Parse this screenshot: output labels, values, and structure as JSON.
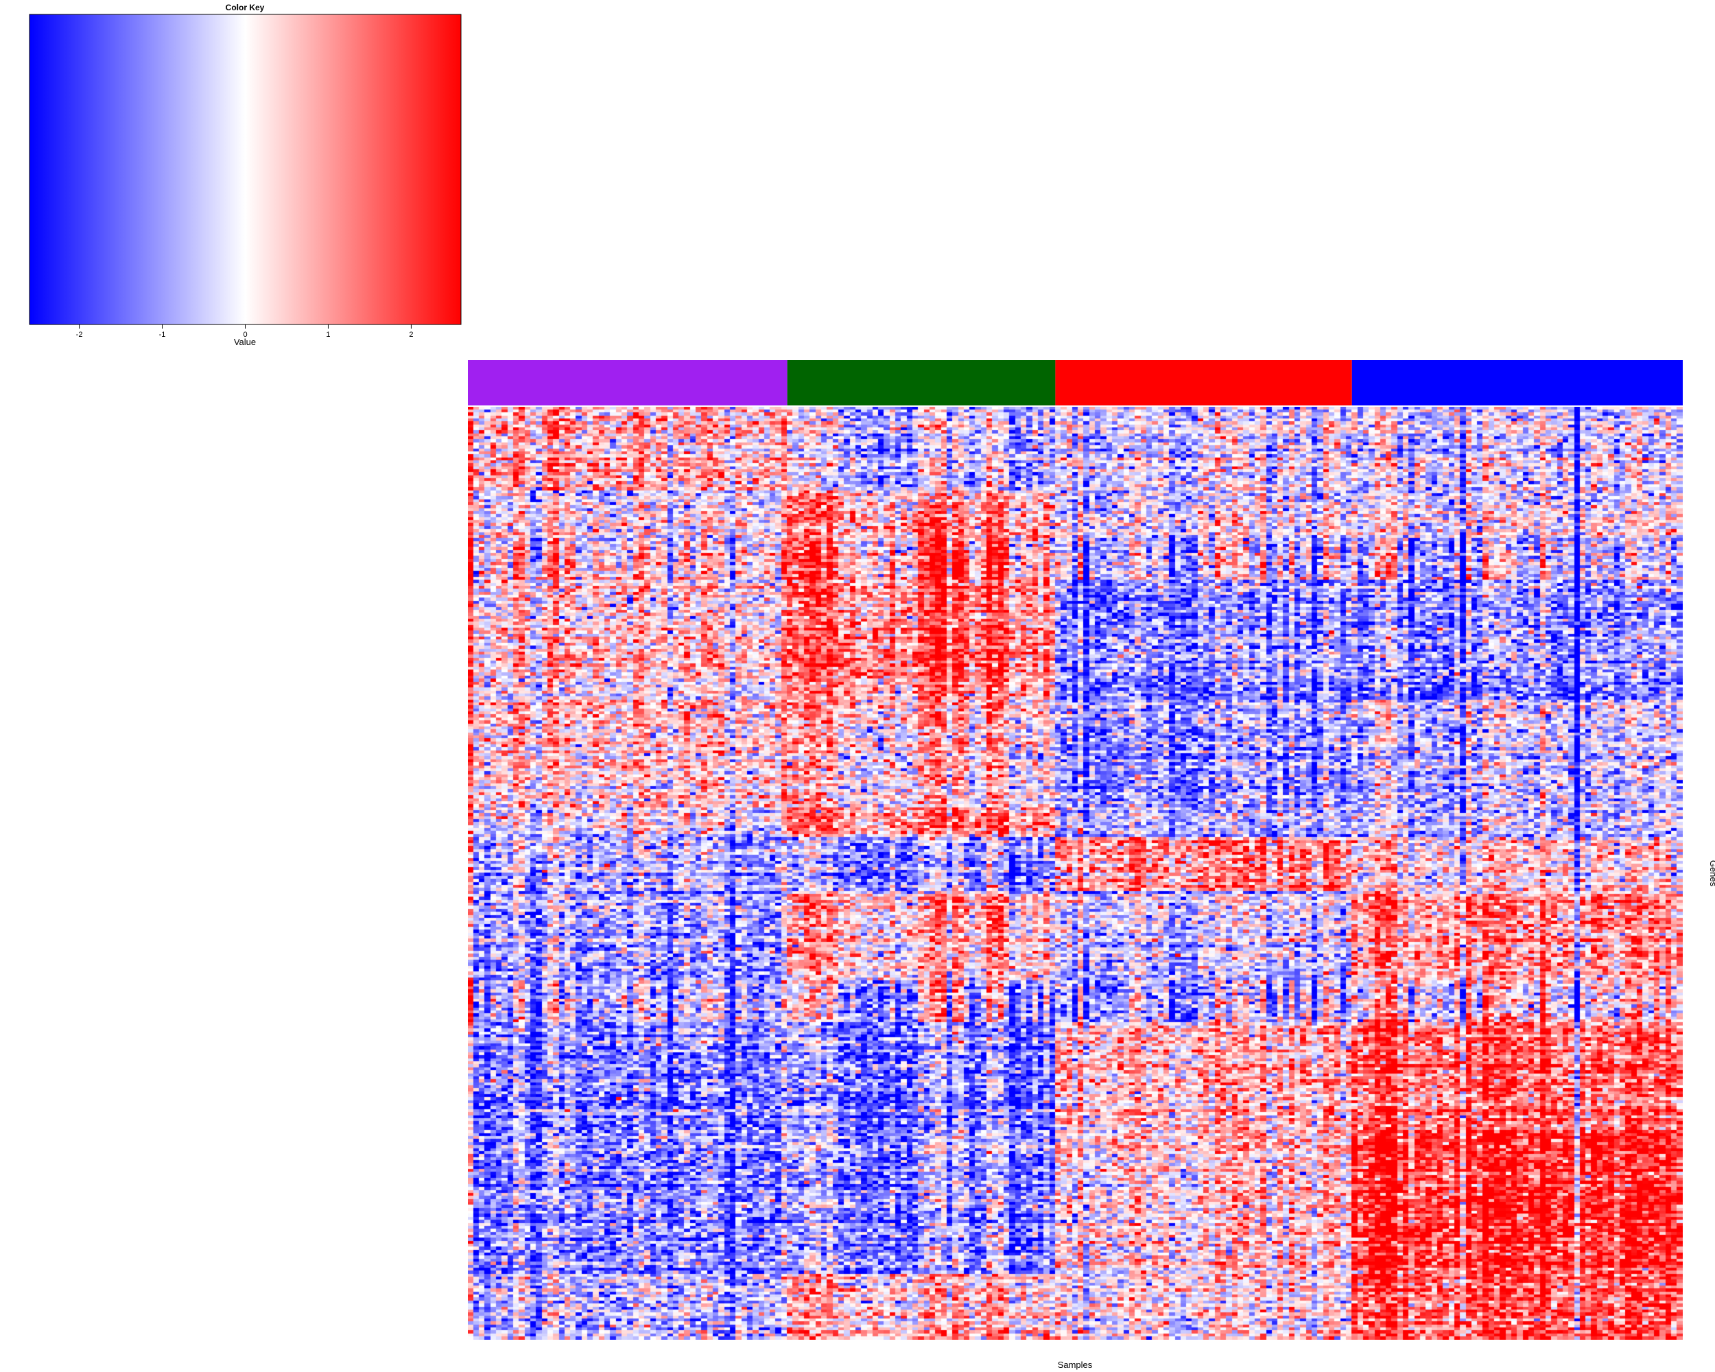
{
  "chart_data": {
    "type": "heatmap",
    "title": "",
    "xlabel": "Samples",
    "ylabel": "Genes",
    "color_key": {
      "title": "Color Key",
      "xlabel": "Value",
      "range": [
        -2.6,
        2.6
      ],
      "ticks": [
        -2,
        -1,
        0,
        1,
        2
      ],
      "tick_labels": [
        "-2",
        "-1",
        "0",
        "1",
        "2"
      ],
      "colors": [
        "#0000ff",
        "#ffffff",
        "#ff0000"
      ]
    },
    "sample_groups": [
      {
        "color": "#a020f0",
        "count": 56
      },
      {
        "color": "#006400",
        "count": 47
      },
      {
        "color": "#ff0000",
        "count": 52
      },
      {
        "color": "#0000ff",
        "count": 58
      }
    ],
    "gene_blocks": [
      {
        "rows": 28,
        "means": [
          0.6,
          -0.5,
          -0.3,
          -0.3
        ],
        "contrast": 1.1
      },
      {
        "rows": 16,
        "means": [
          0.0,
          1.1,
          -0.1,
          0.0
        ],
        "contrast": 1.0
      },
      {
        "rows": 14,
        "means": [
          0.1,
          1.2,
          -0.4,
          -0.6
        ],
        "contrast": 2.0
      },
      {
        "rows": 40,
        "means": [
          0.3,
          1.5,
          -1.1,
          -1.1
        ],
        "contrast": 1.0
      },
      {
        "rows": 36,
        "means": [
          0.4,
          0.5,
          -1.0,
          -0.5
        ],
        "contrast": 1.0
      },
      {
        "rows": 10,
        "means": [
          -0.1,
          1.4,
          -0.7,
          -0.5
        ],
        "contrast": 0.9
      },
      {
        "rows": 18,
        "means": [
          -0.8,
          -1.0,
          1.1,
          0.2
        ],
        "contrast": 1.0
      },
      {
        "rows": 30,
        "means": [
          -0.8,
          0.8,
          -0.3,
          1.2
        ],
        "contrast": 1.0
      },
      {
        "rows": 14,
        "means": [
          -0.6,
          -0.2,
          -0.5,
          0.3
        ],
        "contrast": 2.0
      },
      {
        "rows": 36,
        "means": [
          -1.4,
          -1.3,
          0.6,
          1.5
        ],
        "contrast": 1.0
      },
      {
        "rows": 48,
        "means": [
          -1.2,
          -1.0,
          0.4,
          2.2
        ],
        "contrast": 1.0
      },
      {
        "rows": 22,
        "means": [
          -0.8,
          0.5,
          0.0,
          1.6
        ],
        "contrast": 0.9
      }
    ]
  }
}
